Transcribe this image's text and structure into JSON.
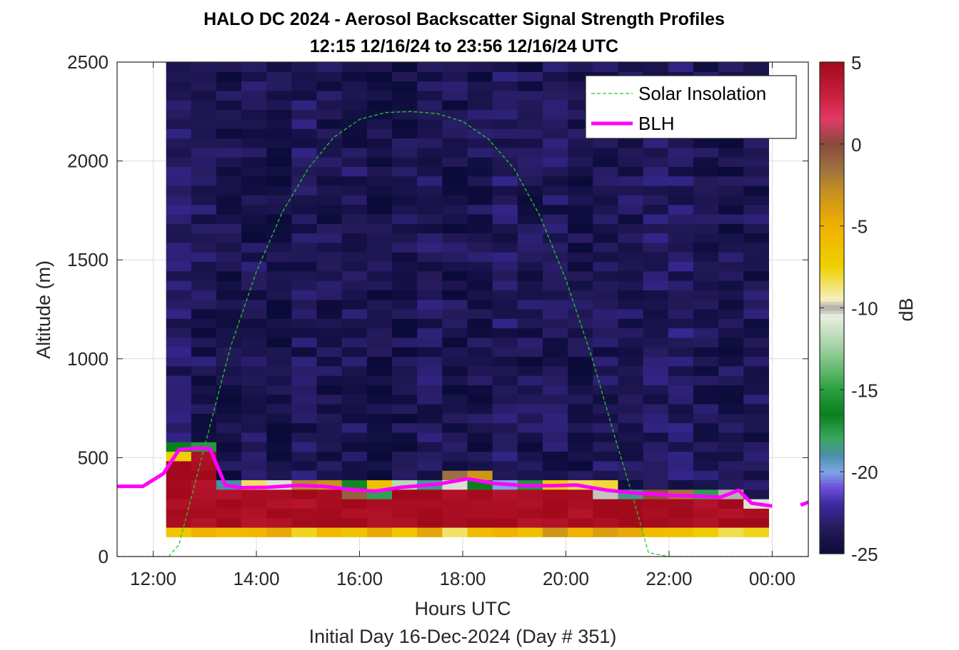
{
  "chart_data": {
    "type": "heatmap",
    "title": "HALO DC 2024 - Aerosol Backscatter Signal Strength Profiles",
    "subtitle": "12:15 12/16/24 to 23:56 12/16/24  UTC",
    "xlabel": "Hours UTC",
    "xlabel2": "Initial Day 16-Dec-2024 (Day # 351)",
    "ylabel": "Altitude (m)",
    "colorbar_label": "dB",
    "x_range_hours": [
      11.3,
      24.7
    ],
    "x_ticks": [
      {
        "value": 12,
        "label": "12:00"
      },
      {
        "value": 14,
        "label": "14:00"
      },
      {
        "value": 16,
        "label": "16:00"
      },
      {
        "value": 18,
        "label": "18:00"
      },
      {
        "value": 20,
        "label": "20:00"
      },
      {
        "value": 22,
        "label": "22:00"
      },
      {
        "value": 24,
        "label": "00:00"
      }
    ],
    "ylim": [
      0,
      2500
    ],
    "y_ticks": [
      {
        "value": 0,
        "label": "0"
      },
      {
        "value": 500,
        "label": "500"
      },
      {
        "value": 1000,
        "label": "1000"
      },
      {
        "value": 1500,
        "label": "1500"
      },
      {
        "value": 2000,
        "label": "2000"
      },
      {
        "value": 2500,
        "label": "2500"
      }
    ],
    "color_range": [
      -25,
      5
    ],
    "color_ticks": [
      {
        "value": 5,
        "label": "5"
      },
      {
        "value": 0,
        "label": "0"
      },
      {
        "value": -5,
        "label": "-5"
      },
      {
        "value": -10,
        "label": "-10"
      },
      {
        "value": -15,
        "label": "-15"
      },
      {
        "value": -20,
        "label": "-20"
      },
      {
        "value": -25,
        "label": "-25"
      }
    ],
    "colormap": [
      {
        "v": -25,
        "c": "#0b0b3a"
      },
      {
        "v": -23.5,
        "c": "#241a5a"
      },
      {
        "v": -22,
        "c": "#3b2aa0"
      },
      {
        "v": -21,
        "c": "#6b4fd8"
      },
      {
        "v": -20,
        "c": "#7ea6e6"
      },
      {
        "v": -19,
        "c": "#4a8fa8"
      },
      {
        "v": -18,
        "c": "#3aa860"
      },
      {
        "v": -16.5,
        "c": "#0a7f1e"
      },
      {
        "v": -15,
        "c": "#2aa040"
      },
      {
        "v": -12.5,
        "c": "#9fd0a0"
      },
      {
        "v": -10.5,
        "c": "#e8eee0"
      },
      {
        "v": -10,
        "c": "#aaaaaa"
      },
      {
        "v": -9.5,
        "c": "#f6f0c0"
      },
      {
        "v": -7.5,
        "c": "#f0d000"
      },
      {
        "v": -5,
        "c": "#f0b000"
      },
      {
        "v": -3,
        "c": "#c8921e"
      },
      {
        "v": -1.5,
        "c": "#9e7040"
      },
      {
        "v": 0,
        "c": "#8a4a3c"
      },
      {
        "v": 1.5,
        "c": "#e03a66"
      },
      {
        "v": 3,
        "c": "#c81e3c"
      },
      {
        "v": 5,
        "c": "#a20a1c"
      }
    ],
    "heatmap_extent": {
      "x_start": 12.25,
      "x_end": 23.93,
      "y_start": 100,
      "y_end": 2500,
      "n_cols": 24,
      "n_rows": 50
    },
    "column_mean_db": [
      -23.4,
      -23.8,
      -24.1,
      -23.9,
      -24.3,
      -23.7,
      -24.0,
      -23.8,
      -24.4,
      -24.2,
      -23.6,
      -24.1,
      -23.9,
      -23.5,
      -24.0,
      -23.8,
      -24.2,
      -23.7,
      -23.9,
      -23.6,
      -23.4,
      -23.8,
      -24.0,
      -23.9
    ],
    "series": [
      {
        "name": "Solar Insolation",
        "color": "#22cc22",
        "style": "dashed",
        "x": [
          11.3,
          12.3,
          12.5,
          13.0,
          13.5,
          14.0,
          14.5,
          15.0,
          15.5,
          16.0,
          16.5,
          17.0,
          17.5,
          18.0,
          18.5,
          19.0,
          19.5,
          20.0,
          20.5,
          21.0,
          21.3,
          21.6,
          22.0,
          23.0,
          24.0,
          24.7
        ],
        "y": [
          0,
          0,
          60,
          560,
          1060,
          1440,
          1740,
          1960,
          2120,
          2210,
          2245,
          2250,
          2240,
          2200,
          2110,
          1960,
          1720,
          1400,
          1010,
          560,
          300,
          20,
          0,
          0,
          0,
          0
        ]
      },
      {
        "name": "BLH",
        "color": "#ff00ff",
        "style": "solid",
        "x": [
          11.3,
          11.8,
          12.2,
          12.5,
          12.9,
          13.1,
          13.4,
          13.7,
          14.2,
          14.8,
          15.3,
          15.8,
          16.3,
          16.8,
          17.5,
          18.1,
          18.6,
          19.2,
          19.7,
          20.2,
          20.8,
          21.4,
          22.0,
          22.6,
          23.0,
          23.35,
          23.6,
          24.0
        ],
        "y": [
          355,
          355,
          420,
          540,
          548,
          545,
          360,
          348,
          350,
          360,
          355,
          340,
          330,
          350,
          365,
          393,
          370,
          358,
          358,
          362,
          335,
          320,
          310,
          305,
          300,
          335,
          270,
          255
        ]
      },
      {
        "name": "",
        "color": "#ff00ff",
        "style": "solid",
        "x": [
          24.55,
          24.7
        ],
        "y": [
          260,
          275
        ]
      }
    ],
    "legend": {
      "position": "top-right",
      "entries": [
        "Solar Insolation",
        "BLH"
      ]
    },
    "grid": true
  }
}
